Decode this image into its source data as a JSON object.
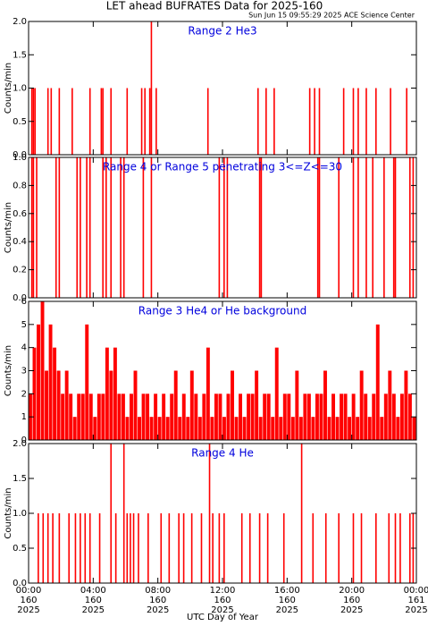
{
  "header": {
    "title": "LET ahead BUFRATES Data for 2025-160",
    "subtitle": "Sun Jun 15 09:55:29 2025 ACE Science Center"
  },
  "chart_data": [
    {
      "type": "spike",
      "title": "Range 2 He3",
      "ylabel": "Counts/min",
      "color": "#ff0000",
      "xlim": [
        0,
        24
      ],
      "ylim": [
        0,
        2
      ],
      "yticks": [
        {
          "value": 0,
          "label": "0.0"
        },
        {
          "value": 0.5,
          "label": "0.5"
        },
        {
          "value": 1,
          "label": "1.0"
        },
        {
          "value": 1.5,
          "label": "1.5"
        },
        {
          "value": 2,
          "label": "2.0"
        }
      ],
      "x": [
        0.2,
        0.3,
        0.4,
        1.2,
        1.4,
        1.9,
        2.7,
        3.8,
        4.5,
        4.6,
        5.1,
        6.1,
        7.0,
        7.2,
        7.5,
        7.6,
        7.9,
        11.1,
        14.2,
        14.7,
        15.2,
        17.4,
        17.7,
        18.0,
        19.5,
        20.1,
        20.4,
        20.9,
        21.5,
        22.4,
        23.4
      ],
      "values": [
        1,
        1,
        1,
        1,
        1,
        1,
        1,
        1,
        1,
        1,
        1,
        1,
        1,
        1,
        1,
        2,
        1,
        1,
        1,
        1,
        1,
        1,
        1,
        1,
        1,
        1,
        1,
        1,
        1,
        1,
        1
      ]
    },
    {
      "type": "spike",
      "title": "Range 4 or Range 5 penetrating 3<=Z<=30",
      "ylabel": "Counts/min",
      "color": "#ff0000",
      "xlim": [
        0,
        24
      ],
      "ylim": [
        0,
        1
      ],
      "yticks": [
        {
          "value": 0,
          "label": "0.0"
        },
        {
          "value": 0.2,
          "label": "0.2"
        },
        {
          "value": 0.4,
          "label": "0.4"
        },
        {
          "value": 0.6,
          "label": "0.6"
        },
        {
          "value": 0.8,
          "label": "0.8"
        },
        {
          "value": 1,
          "label": "1.0"
        }
      ],
      "x": [
        0.2,
        0.3,
        0.5,
        1.7,
        1.9,
        3.0,
        3.2,
        3.6,
        3.8,
        4.6,
        4.8,
        5.1,
        5.7,
        5.9,
        7.1,
        7.6,
        11.8,
        12.1,
        12.3,
        14.3,
        14.4,
        17.9,
        18.0,
        19.2,
        20.1,
        20.4,
        20.9,
        21.3,
        22.0,
        22.6,
        22.7,
        23.6,
        23.8
      ],
      "values": [
        1,
        1,
        1,
        1,
        1,
        1,
        1,
        1,
        1,
        1,
        1,
        1,
        1,
        1,
        1,
        1,
        1,
        1,
        1,
        1,
        1,
        1,
        1,
        1,
        1,
        1,
        1,
        1,
        1,
        1,
        1,
        1,
        1
      ]
    },
    {
      "type": "bar",
      "title": "Range 3 He4 or He background",
      "ylabel": "Counts/min",
      "color": "#ff0000",
      "xlim": [
        0,
        24
      ],
      "ylim": [
        0,
        6
      ],
      "yticks": [
        0,
        1,
        2,
        3,
        4,
        5,
        6
      ],
      "x": [
        0,
        0.25,
        0.5,
        0.75,
        1,
        1.25,
        1.5,
        1.75,
        2,
        2.25,
        2.5,
        2.75,
        3,
        3.25,
        3.5,
        3.75,
        4,
        4.25,
        4.5,
        4.75,
        5,
        5.25,
        5.5,
        5.75,
        6,
        6.25,
        6.5,
        6.75,
        7,
        7.25,
        7.5,
        7.75,
        8,
        8.25,
        8.5,
        8.75,
        9,
        9.25,
        9.5,
        9.75,
        10,
        10.25,
        10.5,
        10.75,
        11,
        11.25,
        11.5,
        11.75,
        12,
        12.25,
        12.5,
        12.75,
        13,
        13.25,
        13.5,
        13.75,
        14,
        14.25,
        14.5,
        14.75,
        15,
        15.25,
        15.5,
        15.75,
        16,
        16.25,
        16.5,
        16.75,
        17,
        17.25,
        17.5,
        17.75,
        18,
        18.25,
        18.5,
        18.75,
        19,
        19.25,
        19.5,
        19.75,
        20,
        20.25,
        20.5,
        20.75,
        21,
        21.25,
        21.5,
        21.75,
        22,
        22.25,
        22.5,
        22.75,
        23,
        23.25,
        23.5,
        23.75
      ],
      "values": [
        2,
        4,
        5,
        6,
        3,
        5,
        4,
        3,
        2,
        3,
        2,
        1,
        2,
        2,
        5,
        2,
        1,
        2,
        2,
        4,
        3,
        4,
        2,
        2,
        1,
        2,
        3,
        1,
        2,
        2,
        1,
        2,
        1,
        2,
        1,
        2,
        3,
        1,
        2,
        1,
        3,
        2,
        1,
        2,
        4,
        1,
        2,
        2,
        1,
        2,
        3,
        1,
        2,
        1,
        2,
        2,
        3,
        1,
        2,
        2,
        1,
        4,
        1,
        2,
        2,
        1,
        3,
        1,
        2,
        2,
        1,
        2,
        2,
        3,
        1,
        2,
        1,
        2,
        2,
        1,
        2,
        1,
        3,
        2,
        1,
        2,
        5,
        1,
        2,
        3,
        2,
        1,
        2,
        3,
        2,
        1
      ]
    },
    {
      "type": "spike",
      "title": "Range 4 He",
      "ylabel": "Counts/min",
      "color": "#ff0000",
      "xlim": [
        0,
        24
      ],
      "ylim": [
        0,
        2
      ],
      "yticks": [
        {
          "value": 0,
          "label": "0.0"
        },
        {
          "value": 0.5,
          "label": "0.5"
        },
        {
          "value": 1,
          "label": "1.0"
        },
        {
          "value": 1.5,
          "label": "1.5"
        },
        {
          "value": 2,
          "label": "2.0"
        }
      ],
      "x": [
        0.6,
        0.9,
        1.2,
        1.5,
        1.9,
        2.5,
        2.9,
        3.2,
        3.5,
        3.8,
        4.4,
        5.1,
        5.4,
        5.9,
        6.1,
        6.3,
        6.5,
        6.8,
        7.4,
        8.2,
        8.7,
        9.3,
        9.6,
        10.1,
        10.7,
        11.2,
        11.4,
        11.8,
        12.1,
        13.2,
        13.7,
        14.3,
        14.8,
        15.8,
        16.9,
        17.6,
        18.4,
        19.2,
        20.1,
        20.6,
        21.5,
        22.3,
        22.7,
        23.0,
        23.6,
        23.8
      ],
      "values": [
        1,
        1,
        1,
        1,
        1,
        1,
        1,
        1,
        1,
        1,
        1,
        2,
        1,
        2,
        1,
        1,
        1,
        1,
        1,
        1,
        1,
        1,
        1,
        1,
        1,
        2,
        1,
        1,
        1,
        1,
        1,
        1,
        1,
        1,
        2,
        1,
        1,
        1,
        1,
        1,
        1,
        1,
        1,
        1,
        1,
        1
      ],
      "xlabel": "UTC Day of Year",
      "xticks": [
        {
          "value": 0,
          "label": "00:00"
        },
        {
          "value": 4,
          "label": "04:00"
        },
        {
          "value": 8,
          "label": "08:00"
        },
        {
          "value": 12,
          "label": "12:00"
        },
        {
          "value": 16,
          "label": "16:00"
        },
        {
          "value": 20,
          "label": "20:00"
        },
        {
          "value": 24,
          "label": "00:00"
        }
      ],
      "xtick_days": [
        "160",
        "160",
        "160",
        "160",
        "160",
        "160",
        "161"
      ],
      "xtick_years": [
        "2025",
        "2025",
        "2025",
        "2025",
        "2025",
        "2025",
        "2025"
      ]
    }
  ]
}
